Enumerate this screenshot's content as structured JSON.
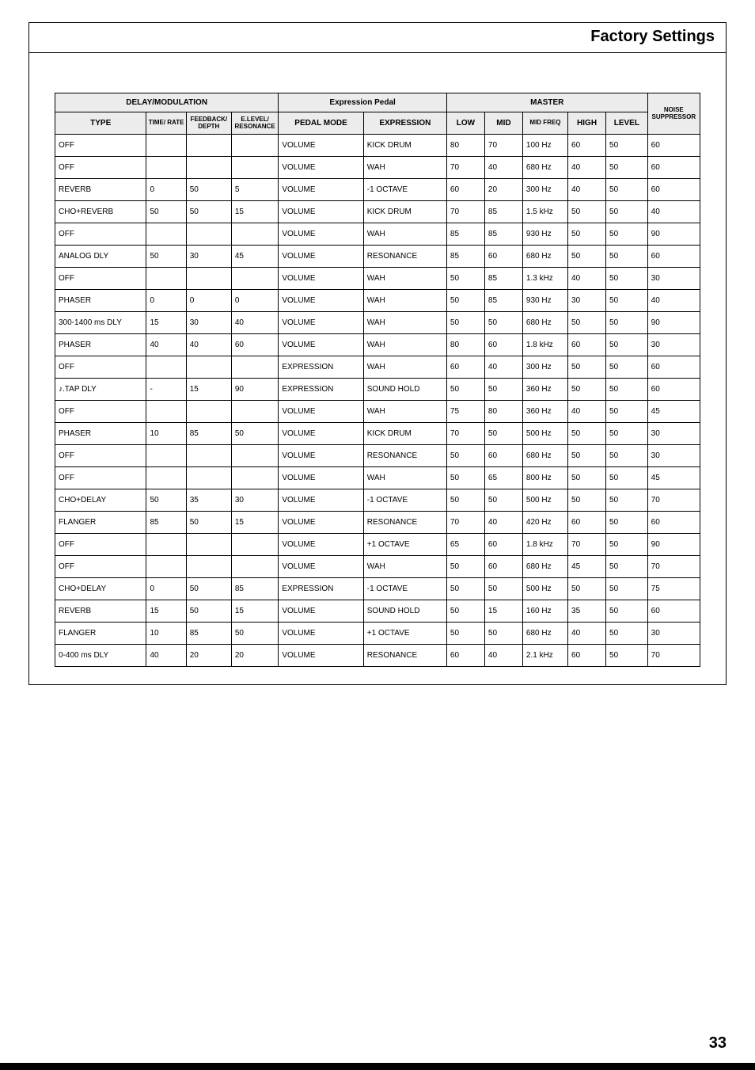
{
  "header": {
    "title": "Factory Settings"
  },
  "page_number": "33",
  "table": {
    "sections": {
      "delay_mod": "DELAY/MODULATION",
      "expr_pedal": "Expression Pedal",
      "master": "MASTER",
      "noise": "NOISE SUPPRESSOR"
    },
    "columns": {
      "type": "TYPE",
      "time_rate": "TIME/\nRATE",
      "feedback_depth": "FEEDBACK/\nDEPTH",
      "elevel_res": "E.LEVEL/\nRESONANCE",
      "pedal_mode": "PEDAL MODE",
      "expression": "EXPRESSION",
      "low": "LOW",
      "mid": "MID",
      "mid_freq": "MID FREQ",
      "high": "HIGH",
      "level": "LEVEL"
    },
    "rows": [
      {
        "type": "OFF",
        "time": "",
        "fb": "",
        "el": "",
        "pm": "VOLUME",
        "ex": "KICK DRUM",
        "low": "80",
        "mid": "70",
        "mf": "100 Hz",
        "high": "60",
        "lvl": "50",
        "ns": "60"
      },
      {
        "type": "OFF",
        "time": "",
        "fb": "",
        "el": "",
        "pm": "VOLUME",
        "ex": "WAH",
        "low": "70",
        "mid": "40",
        "mf": "680 Hz",
        "high": "40",
        "lvl": "50",
        "ns": "60"
      },
      {
        "type": "REVERB",
        "time": "0",
        "fb": "50",
        "el": "5",
        "pm": "VOLUME",
        "ex": "-1 OCTAVE",
        "low": "60",
        "mid": "20",
        "mf": "300 Hz",
        "high": "40",
        "lvl": "50",
        "ns": "60"
      },
      {
        "type": "CHO+REVERB",
        "time": "50",
        "fb": "50",
        "el": "15",
        "pm": "VOLUME",
        "ex": "KICK DRUM",
        "low": "70",
        "mid": "85",
        "mf": "1.5 kHz",
        "high": "50",
        "lvl": "50",
        "ns": "40"
      },
      {
        "type": "OFF",
        "time": "",
        "fb": "",
        "el": "",
        "pm": "VOLUME",
        "ex": "WAH",
        "low": "85",
        "mid": "85",
        "mf": "930 Hz",
        "high": "50",
        "lvl": "50",
        "ns": "90"
      },
      {
        "type": "ANALOG DLY",
        "time": "50",
        "fb": "30",
        "el": "45",
        "pm": "VOLUME",
        "ex": "RESONANCE",
        "low": "85",
        "mid": "60",
        "mf": "680 Hz",
        "high": "50",
        "lvl": "50",
        "ns": "60"
      },
      {
        "type": "OFF",
        "time": "",
        "fb": "",
        "el": "",
        "pm": "VOLUME",
        "ex": "WAH",
        "low": "50",
        "mid": "85",
        "mf": "1.3 kHz",
        "high": "40",
        "lvl": "50",
        "ns": "30"
      },
      {
        "type": "PHASER",
        "time": "0",
        "fb": "0",
        "el": "0",
        "pm": "VOLUME",
        "ex": "WAH",
        "low": "50",
        "mid": "85",
        "mf": "930 Hz",
        "high": "30",
        "lvl": "50",
        "ns": "40"
      },
      {
        "type": "300-1400 ms DLY",
        "time": "15",
        "fb": "30",
        "el": "40",
        "pm": "VOLUME",
        "ex": "WAH",
        "low": "50",
        "mid": "50",
        "mf": "680 Hz",
        "high": "50",
        "lvl": "50",
        "ns": "90"
      },
      {
        "type": "PHASER",
        "time": "40",
        "fb": "40",
        "el": "60",
        "pm": "VOLUME",
        "ex": "WAH",
        "low": "80",
        "mid": "60",
        "mf": "1.8 kHz",
        "high": "60",
        "lvl": "50",
        "ns": "30"
      },
      {
        "type": "OFF",
        "time": "",
        "fb": "",
        "el": "",
        "pm": "EXPRESSION",
        "ex": "WAH",
        "low": "60",
        "mid": "40",
        "mf": "300 Hz",
        "high": "50",
        "lvl": "50",
        "ns": "60"
      },
      {
        "type": "♪.TAP DLY",
        "time": "-",
        "fb": "15",
        "el": "90",
        "pm": "EXPRESSION",
        "ex": "SOUND HOLD",
        "low": "50",
        "mid": "50",
        "mf": "360 Hz",
        "high": "50",
        "lvl": "50",
        "ns": "60"
      },
      {
        "type": "OFF",
        "time": "",
        "fb": "",
        "el": "",
        "pm": "VOLUME",
        "ex": "WAH",
        "low": "75",
        "mid": "80",
        "mf": "360 Hz",
        "high": "40",
        "lvl": "50",
        "ns": "45"
      },
      {
        "type": "PHASER",
        "time": "10",
        "fb": "85",
        "el": "50",
        "pm": "VOLUME",
        "ex": "KICK DRUM",
        "low": "70",
        "mid": "50",
        "mf": "500 Hz",
        "high": "50",
        "lvl": "50",
        "ns": "30"
      },
      {
        "type": "OFF",
        "time": "",
        "fb": "",
        "el": "",
        "pm": "VOLUME",
        "ex": "RESONANCE",
        "low": "50",
        "mid": "60",
        "mf": "680 Hz",
        "high": "50",
        "lvl": "50",
        "ns": "30"
      },
      {
        "type": "OFF",
        "time": "",
        "fb": "",
        "el": "",
        "pm": "VOLUME",
        "ex": "WAH",
        "low": "50",
        "mid": "65",
        "mf": "800 Hz",
        "high": "50",
        "lvl": "50",
        "ns": "45"
      },
      {
        "type": "CHO+DELAY",
        "time": "50",
        "fb": "35",
        "el": "30",
        "pm": "VOLUME",
        "ex": "-1 OCTAVE",
        "low": "50",
        "mid": "50",
        "mf": "500 Hz",
        "high": "50",
        "lvl": "50",
        "ns": "70"
      },
      {
        "type": "FLANGER",
        "time": "85",
        "fb": "50",
        "el": "15",
        "pm": "VOLUME",
        "ex": "RESONANCE",
        "low": "70",
        "mid": "40",
        "mf": "420 Hz",
        "high": "60",
        "lvl": "50",
        "ns": "60"
      },
      {
        "type": "OFF",
        "time": "",
        "fb": "",
        "el": "",
        "pm": "VOLUME",
        "ex": "+1 OCTAVE",
        "low": "65",
        "mid": "60",
        "mf": "1.8 kHz",
        "high": "70",
        "lvl": "50",
        "ns": "90"
      },
      {
        "type": "OFF",
        "time": "",
        "fb": "",
        "el": "",
        "pm": "VOLUME",
        "ex": "WAH",
        "low": "50",
        "mid": "60",
        "mf": "680 Hz",
        "high": "45",
        "lvl": "50",
        "ns": "70"
      },
      {
        "type": "CHO+DELAY",
        "time": "0",
        "fb": "50",
        "el": "85",
        "pm": "EXPRESSION",
        "ex": "-1 OCTAVE",
        "low": "50",
        "mid": "50",
        "mf": "500 Hz",
        "high": "50",
        "lvl": "50",
        "ns": "75"
      },
      {
        "type": "REVERB",
        "time": "15",
        "fb": "50",
        "el": "15",
        "pm": "VOLUME",
        "ex": "SOUND HOLD",
        "low": "50",
        "mid": "15",
        "mf": "160 Hz",
        "high": "35",
        "lvl": "50",
        "ns": "60"
      },
      {
        "type": "FLANGER",
        "time": "10",
        "fb": "85",
        "el": "50",
        "pm": "VOLUME",
        "ex": "+1 OCTAVE",
        "low": "50",
        "mid": "50",
        "mf": "680 Hz",
        "high": "40",
        "lvl": "50",
        "ns": "30"
      },
      {
        "type": "0-400 ms DLY",
        "time": "40",
        "fb": "20",
        "el": "20",
        "pm": "VOLUME",
        "ex": "RESONANCE",
        "low": "60",
        "mid": "40",
        "mf": "2.1 kHz",
        "high": "60",
        "lvl": "50",
        "ns": "70"
      }
    ]
  }
}
